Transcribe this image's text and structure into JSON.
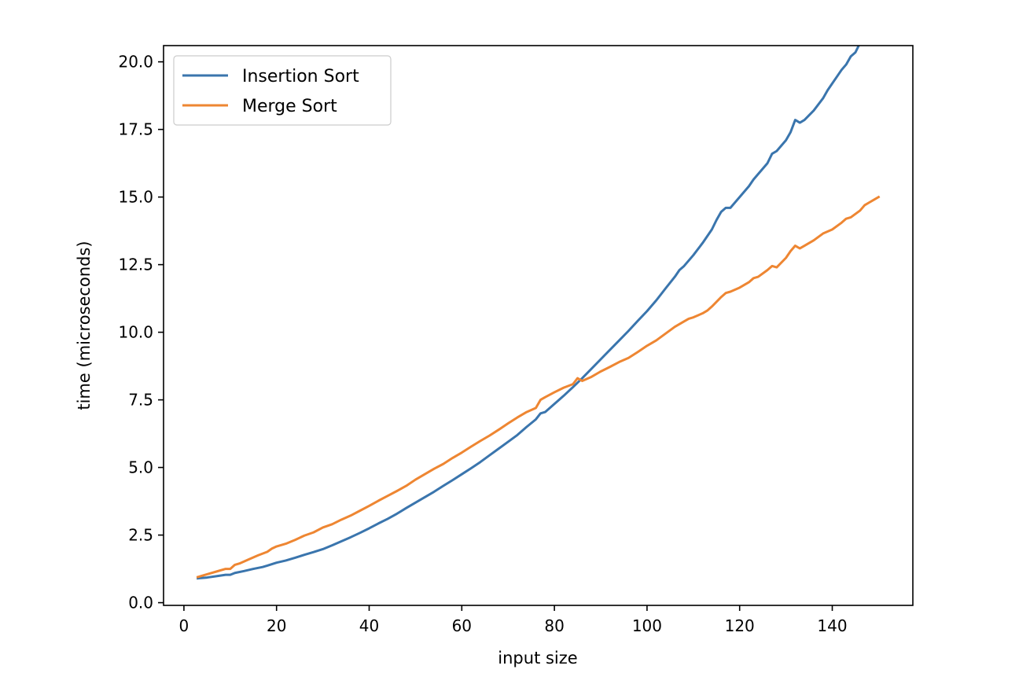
{
  "chart_data": {
    "type": "line",
    "title": "",
    "xlabel": "input size",
    "ylabel": "time (microseconds)",
    "xlim": [
      -4.4,
      157.4
    ],
    "ylim": [
      -0.1,
      20.6
    ],
    "xticks": [
      0,
      20,
      40,
      60,
      80,
      100,
      120,
      140
    ],
    "yticks": [
      0.0,
      2.5,
      5.0,
      7.5,
      10.0,
      12.5,
      15.0,
      17.5,
      20.0
    ],
    "grid": false,
    "legend": "top-left",
    "series": [
      {
        "name": "Insertion Sort",
        "color": "#3a75ad",
        "x": [
          3,
          5,
          7,
          9,
          10,
          11,
          13,
          15,
          17,
          18,
          20,
          22,
          24,
          26,
          28,
          30,
          32,
          34,
          36,
          38,
          40,
          42,
          44,
          46,
          48,
          50,
          52,
          54,
          56,
          58,
          60,
          62,
          64,
          66,
          68,
          70,
          72,
          74,
          76,
          77,
          78,
          80,
          82,
          84,
          86,
          88,
          90,
          92,
          94,
          96,
          98,
          100,
          102,
          104,
          106,
          107,
          108,
          110,
          112,
          114,
          115,
          116,
          117,
          118,
          120,
          122,
          123,
          124,
          125,
          126,
          127,
          128,
          130,
          131,
          132,
          133,
          134,
          136,
          138,
          139,
          140,
          141,
          142,
          143,
          144,
          145,
          146,
          147,
          148,
          149,
          150
        ],
        "values": [
          0.9,
          0.93,
          0.98,
          1.03,
          1.03,
          1.1,
          1.17,
          1.25,
          1.32,
          1.37,
          1.48,
          1.56,
          1.66,
          1.77,
          1.87,
          1.98,
          2.12,
          2.27,
          2.42,
          2.58,
          2.75,
          2.93,
          3.1,
          3.29,
          3.5,
          3.7,
          3.9,
          4.1,
          4.32,
          4.53,
          4.75,
          4.97,
          5.2,
          5.45,
          5.7,
          5.95,
          6.2,
          6.5,
          6.78,
          7.0,
          7.05,
          7.35,
          7.65,
          7.97,
          8.3,
          8.65,
          9.0,
          9.35,
          9.7,
          10.05,
          10.42,
          10.78,
          11.18,
          11.62,
          12.05,
          12.3,
          12.45,
          12.85,
          13.3,
          13.8,
          14.15,
          14.45,
          14.6,
          14.6,
          15.0,
          15.4,
          15.65,
          15.85,
          16.05,
          16.25,
          16.6,
          16.7,
          17.1,
          17.4,
          17.85,
          17.75,
          17.85,
          18.2,
          18.65,
          18.95,
          19.2,
          19.45,
          19.7,
          19.9,
          20.2,
          20.35,
          20.7,
          20.95,
          21.3,
          21.45,
          21.7
        ]
      },
      {
        "name": "Merge Sort",
        "color": "#ee8632",
        "x": [
          3,
          5,
          7,
          9,
          10,
          11,
          12,
          14,
          16,
          18,
          19,
          20,
          22,
          24,
          26,
          28,
          30,
          32,
          34,
          36,
          38,
          40,
          42,
          44,
          46,
          48,
          50,
          52,
          54,
          56,
          58,
          60,
          62,
          64,
          66,
          68,
          70,
          72,
          74,
          76,
          77,
          78,
          80,
          82,
          84,
          85,
          86,
          88,
          90,
          92,
          94,
          96,
          98,
          100,
          102,
          104,
          106,
          108,
          109,
          110,
          112,
          113,
          114,
          116,
          117,
          118,
          120,
          122,
          123,
          124,
          126,
          127,
          128,
          130,
          131,
          132,
          133,
          134,
          136,
          138,
          140,
          142,
          143,
          144,
          146,
          147,
          148,
          149,
          150
        ],
        "values": [
          0.95,
          1.05,
          1.15,
          1.25,
          1.25,
          1.4,
          1.45,
          1.6,
          1.75,
          1.88,
          2.0,
          2.08,
          2.18,
          2.32,
          2.48,
          2.6,
          2.78,
          2.9,
          3.07,
          3.22,
          3.4,
          3.58,
          3.77,
          3.95,
          4.13,
          4.32,
          4.55,
          4.75,
          4.95,
          5.13,
          5.35,
          5.55,
          5.77,
          5.98,
          6.18,
          6.4,
          6.63,
          6.85,
          7.05,
          7.2,
          7.5,
          7.6,
          7.78,
          7.95,
          8.08,
          8.3,
          8.2,
          8.35,
          8.55,
          8.72,
          8.9,
          9.05,
          9.27,
          9.5,
          9.7,
          9.95,
          10.2,
          10.4,
          10.5,
          10.55,
          10.7,
          10.8,
          10.95,
          11.3,
          11.45,
          11.5,
          11.65,
          11.85,
          12.0,
          12.05,
          12.3,
          12.45,
          12.4,
          12.75,
          13.0,
          13.2,
          13.1,
          13.2,
          13.4,
          13.65,
          13.8,
          14.05,
          14.2,
          14.25,
          14.5,
          14.7,
          14.8,
          14.9,
          15.0
        ]
      }
    ]
  }
}
